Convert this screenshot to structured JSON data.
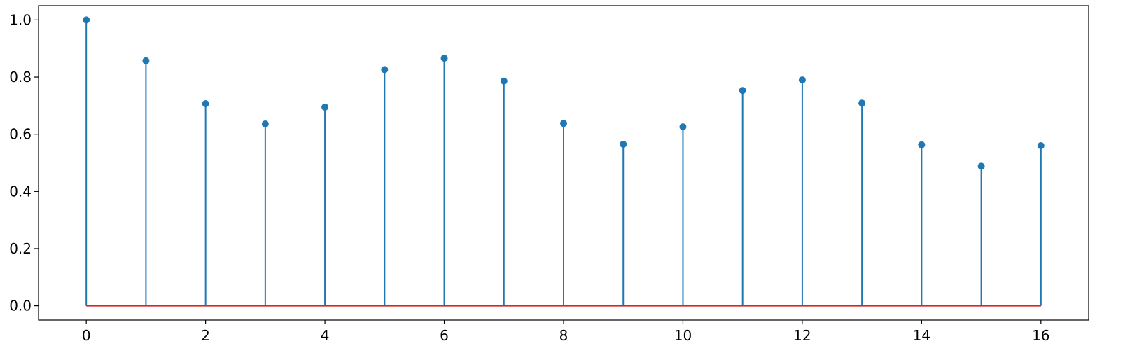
{
  "chart_data": {
    "type": "stem",
    "title": "",
    "xlabel": "",
    "ylabel": "",
    "x": [
      0,
      1,
      2,
      3,
      4,
      5,
      6,
      7,
      8,
      9,
      10,
      11,
      12,
      13,
      14,
      15,
      16
    ],
    "values": [
      1.0,
      0.857,
      0.707,
      0.636,
      0.695,
      0.826,
      0.866,
      0.786,
      0.638,
      0.565,
      0.626,
      0.753,
      0.79,
      0.709,
      0.563,
      0.488,
      0.56
    ],
    "xlim": [
      -0.8,
      16.8
    ],
    "ylim": [
      -0.05,
      1.05
    ],
    "xticks": [
      "0",
      "2",
      "4",
      "6",
      "8",
      "10",
      "12",
      "14",
      "16"
    ],
    "yticks": [
      "0.0",
      "0.2",
      "0.4",
      "0.6",
      "0.8",
      "1.0"
    ],
    "grid": false,
    "colors": {
      "stem": "#1f77b4",
      "marker": "#1f77b4",
      "baseline": "#d62728",
      "axis": "#000000"
    }
  }
}
